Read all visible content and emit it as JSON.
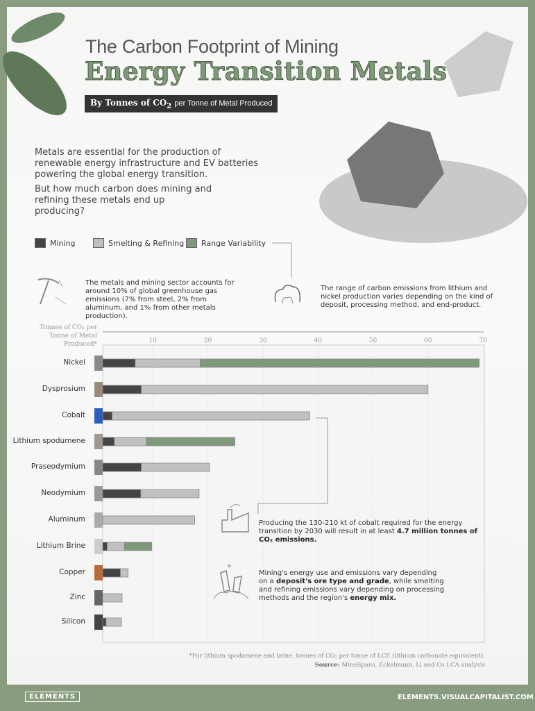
{
  "header": {
    "title_line1": "The Carbon Footprint of Mining",
    "title_line2": "Energy Transition Metals",
    "subtitle_pre": "By Tonnes of CO",
    "subtitle_sub": "2",
    "subtitle_post": "per Tonne of Metal Produced"
  },
  "intro": {
    "p1": "Metals are essential for the production of renewable energy infrastructure and EV batteries powering the global energy transition.",
    "p2": "But how much carbon does mining and refining these metals end up producing?"
  },
  "legend": [
    {
      "label": "Mining",
      "color": "#444444"
    },
    {
      "label": "Smelting & Refining",
      "color": "#c0c0c0"
    },
    {
      "label": "Range Variability",
      "color": "#7e9a7b"
    }
  ],
  "notes": {
    "sector": "The metals and mining sector accounts for around 10% of global greenhouse gas emissions (7% from steel, 2% from aluminum, and 1% from other metals production).",
    "range": "The range of carbon emissions from lithium and nickel production varies depending on the kind of deposit, processing method, and end-product.",
    "cobalt_pre": "Producing the 130-210 kt of cobalt required for the energy transition by 2030 will result in at least ",
    "cobalt_bold": "4.7 million tonnes of CO₂ emissions.",
    "mining_pre": "Mining's energy use and emissions vary depending on a ",
    "mining_bold1": "deposit's ore type and grade",
    "mining_mid": ", while smelting and refining emissions vary depending on processing methods and the region's ",
    "mining_bold2": "energy mix."
  },
  "chart_data": {
    "type": "bar",
    "orientation": "horizontal",
    "stacked": true,
    "ylabel": "Tonnes of CO₂ per Tonne of Metal Produced*",
    "xlim": [
      0,
      70
    ],
    "ticks": [
      "10",
      "20",
      "30",
      "40",
      "50",
      "60",
      "70"
    ],
    "grid": true,
    "categories": [
      "Nickel",
      "Dysprosium",
      "Cobalt",
      "Lithium spodumene",
      "Praseodymium",
      "Neodymium",
      "Aluminum",
      "Lithium Brine",
      "Copper",
      "Zinc",
      "Silicon"
    ],
    "series": [
      {
        "name": "Mining",
        "color": "#444444",
        "values": [
          6.8,
          7.9,
          2.6,
          3.0,
          7.9,
          7.8,
          0,
          1.7,
          4.1,
          0,
          1.5
        ]
      },
      {
        "name": "Smelting & Refining",
        "color": "#c0c0c0",
        "values": [
          11.8,
          52.1,
          35.9,
          5.8,
          12.4,
          10.6,
          17.6,
          3.1,
          1.4,
          4.4,
          2.8
        ]
      },
      {
        "name": "Range Variability",
        "color": "#7e9a7b",
        "values": [
          50.7,
          0,
          0,
          16.1,
          0,
          0,
          0,
          5.0,
          0,
          0,
          0
        ]
      }
    ],
    "footnote": "*For lithium spodumene and brine, tonnes of CO₂ per tonne of LCE (lithium carbonate equivalent).",
    "source_label": "Source:",
    "source": "MineSpans, Eckelmann, Li and Co LCA analysis"
  },
  "footer": {
    "logo": "ELEMENTS",
    "site": "ELEMENTS.VISUALCAPITALIST.COM"
  }
}
